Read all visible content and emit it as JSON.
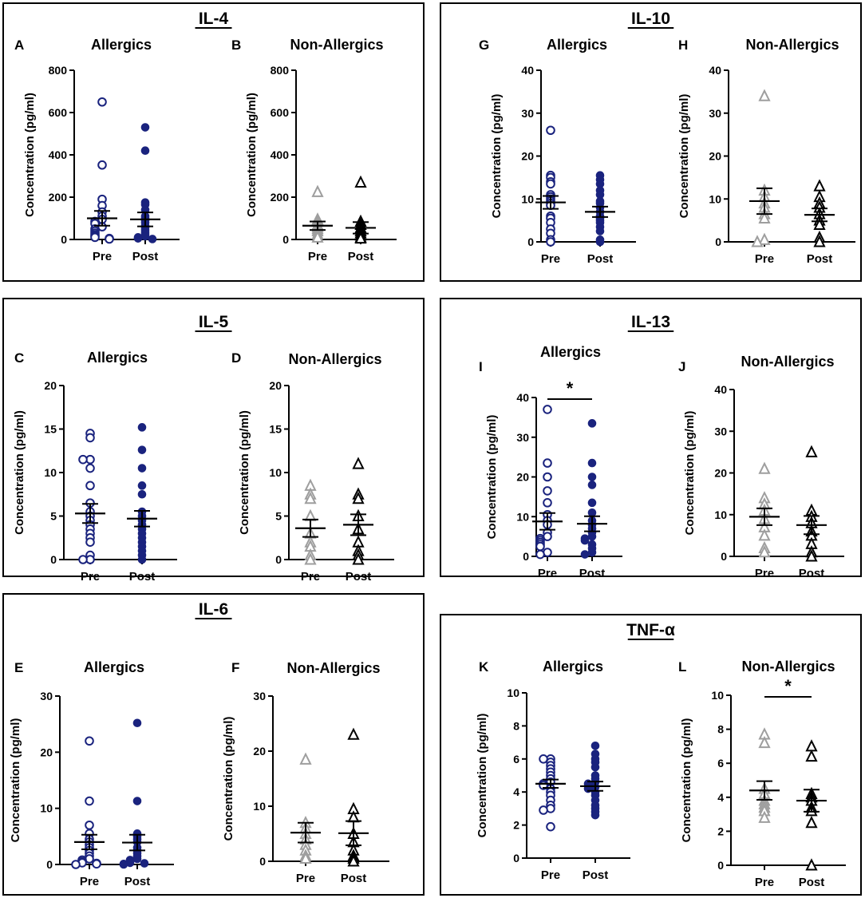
{
  "colors": {
    "allergic_pre": "#1a237e",
    "allergic_post": "#1a237e",
    "nonallergic_pre": "#9e9e9e",
    "nonallergic_post": "#000000",
    "axis": "#000000"
  },
  "panels": [
    {
      "title": "IL-4",
      "plots": [
        "A",
        "B"
      ]
    },
    {
      "title": "IL-10",
      "plots": [
        "G",
        "H"
      ]
    },
    {
      "title": "IL-5",
      "plots": [
        "C",
        "D"
      ]
    },
    {
      "title": "IL-13",
      "plots": [
        "I",
        "J"
      ]
    },
    {
      "title": "IL-6",
      "plots": [
        "E",
        "F"
      ]
    },
    {
      "title": "TNF-α",
      "plots": [
        "K",
        "L"
      ]
    }
  ],
  "chart_data": [
    {
      "id": "A",
      "letter": "A",
      "type": "scatter",
      "title": "Allergics",
      "ylabel": "Concentration (pg/ml)",
      "ylim": [
        0,
        800
      ],
      "yticks": [
        0,
        200,
        400,
        600,
        800
      ],
      "categories": [
        "Pre",
        "Post"
      ],
      "marker": "circle",
      "group": "allergic",
      "series": [
        {
          "name": "Pre",
          "values": [
            650,
            352,
            190,
            160,
            130,
            110,
            95,
            85,
            75,
            60,
            50,
            40,
            30,
            22,
            15,
            10,
            5,
            2
          ],
          "mean": 100,
          "sem": 35
        },
        {
          "name": "Post",
          "values": [
            530,
            420,
            175,
            165,
            140,
            110,
            100,
            90,
            80,
            65,
            55,
            45,
            35,
            25,
            15,
            10,
            5,
            2
          ],
          "mean": 95,
          "sem": 33
        }
      ],
      "significance": null
    },
    {
      "id": "B",
      "letter": "B",
      "type": "scatter",
      "title": "Non-Allergics",
      "ylabel": "Concentration (pg/ml)",
      "ylim": [
        0,
        800
      ],
      "yticks": [
        0,
        200,
        400,
        600,
        800
      ],
      "categories": [
        "Pre",
        "Post"
      ],
      "marker": "triangle",
      "group": "nonallergic",
      "series": [
        {
          "name": "Pre",
          "values": [
            225,
            95,
            85,
            70,
            60,
            50,
            40,
            25,
            10
          ],
          "mean": 65,
          "sem": 20
        },
        {
          "name": "Post",
          "values": [
            270,
            85,
            70,
            55,
            40,
            30,
            20,
            10,
            5
          ],
          "mean": 55,
          "sem": 27
        }
      ],
      "significance": null
    },
    {
      "id": "G",
      "letter": "G",
      "type": "scatter",
      "title": "Allergics",
      "ylabel": "Concentration (pg/ml)",
      "ylim": [
        0,
        40
      ],
      "yticks": [
        0,
        10,
        20,
        30,
        40
      ],
      "categories": [
        "Pre",
        "Post"
      ],
      "marker": "circle",
      "group": "allergic",
      "series": [
        {
          "name": "Pre",
          "values": [
            26,
            15.5,
            15,
            14,
            13.5,
            11,
            10.5,
            10,
            9.5,
            9,
            8.5,
            6,
            5.5,
            4.5,
            3,
            2,
            0.5,
            0
          ],
          "mean": 9.2,
          "sem": 1.5
        },
        {
          "name": "Post",
          "values": [
            15.5,
            14.5,
            13.5,
            12,
            11,
            9.5,
            9,
            8,
            7,
            6,
            5.5,
            5,
            4.5,
            3.5,
            2.5,
            0.5,
            0
          ],
          "mean": 7,
          "sem": 1.2
        }
      ],
      "significance": null
    },
    {
      "id": "H",
      "letter": "H",
      "type": "scatter",
      "title": "Non-Allergics",
      "ylabel": "Concentration (pg/ml)",
      "ylim": [
        0,
        40
      ],
      "yticks": [
        0,
        10,
        20,
        30,
        40
      ],
      "categories": [
        "Pre",
        "Post"
      ],
      "marker": "triangle",
      "group": "nonallergic",
      "series": [
        {
          "name": "Pre",
          "values": [
            34,
            12,
            10.5,
            9,
            8,
            6.5,
            5.5,
            0.5,
            0
          ],
          "mean": 9.5,
          "sem": 3
        },
        {
          "name": "Post",
          "values": [
            13,
            10.5,
            9,
            8,
            6.5,
            5,
            4,
            1,
            0
          ],
          "mean": 6.3,
          "sem": 1.5
        }
      ],
      "significance": null
    },
    {
      "id": "C",
      "letter": "C",
      "type": "scatter",
      "title": "Allergics",
      "ylabel": "Concentration (pg/ml)",
      "ylim": [
        0,
        20
      ],
      "yticks": [
        0,
        5,
        10,
        15,
        20
      ],
      "categories": [
        "Pre",
        "Post"
      ],
      "marker": "circle",
      "group": "allergic",
      "series": [
        {
          "name": "Pre",
          "values": [
            14.5,
            14,
            11.5,
            11.5,
            10.5,
            8.5,
            6.5,
            5.5,
            5,
            4.5,
            4,
            3.5,
            3,
            2.5,
            2,
            0.5,
            0,
            0
          ],
          "mean": 5.3,
          "sem": 1.1
        },
        {
          "name": "Post",
          "values": [
            15.2,
            12.6,
            10.5,
            8.5,
            7.5,
            5.5,
            5,
            4.5,
            4,
            3.5,
            3,
            2.5,
            2,
            1.5,
            1,
            0.5,
            0
          ],
          "mean": 4.7,
          "sem": 0.9
        }
      ],
      "significance": null
    },
    {
      "id": "D",
      "letter": "D",
      "type": "scatter",
      "title": "Non-Allergics",
      "ylabel": "Concentration (pg/ml)",
      "ylim": [
        0,
        20
      ],
      "yticks": [
        0,
        5,
        10,
        15,
        20
      ],
      "categories": [
        "Pre",
        "Post"
      ],
      "marker": "triangle",
      "group": "nonallergic",
      "series": [
        {
          "name": "Pre",
          "values": [
            8.5,
            7.5,
            7,
            5,
            3,
            2,
            1.5,
            0.5,
            0
          ],
          "mean": 3.6,
          "sem": 1
        },
        {
          "name": "Post",
          "values": [
            11,
            7.5,
            7,
            5,
            3.5,
            2,
            1,
            0.5,
            0
          ],
          "mean": 4,
          "sem": 1.2
        }
      ],
      "significance": null
    },
    {
      "id": "I",
      "letter": "I",
      "type": "scatter",
      "title": "Allergics",
      "ylabel": "Concentration (pg/ml)",
      "ylim": [
        0,
        40
      ],
      "yticks": [
        0,
        10,
        20,
        30,
        40
      ],
      "categories": [
        "Pre",
        "Post"
      ],
      "marker": "circle",
      "group": "allergic",
      "series": [
        {
          "name": "Pre",
          "values": [
            37,
            23.5,
            20,
            16.5,
            13.5,
            10.5,
            9,
            8,
            6,
            5,
            4.5,
            4,
            3.5,
            3,
            2.5,
            1,
            0.5
          ],
          "mean": 8.8,
          "sem": 2.1
        },
        {
          "name": "Post",
          "values": [
            33.5,
            23.5,
            20,
            18,
            13.5,
            11,
            9,
            8,
            7,
            6,
            5,
            4.5,
            4,
            3,
            2,
            1,
            0.5
          ],
          "mean": 8.2,
          "sem": 1.9
        }
      ],
      "significance": "*"
    },
    {
      "id": "J",
      "letter": "J",
      "type": "scatter",
      "title": "Non-Allergics",
      "ylabel": "Concentration (pg/ml)",
      "ylim": [
        0,
        40
      ],
      "yticks": [
        0,
        10,
        20,
        30,
        40
      ],
      "categories": [
        "Pre",
        "Post"
      ],
      "marker": "triangle",
      "group": "nonallergic",
      "series": [
        {
          "name": "Pre",
          "values": [
            21,
            14,
            12.5,
            11,
            9,
            7,
            5,
            2,
            1
          ],
          "mean": 9.5,
          "sem": 2
        },
        {
          "name": "Post",
          "values": [
            25,
            11,
            9.5,
            8,
            6,
            5,
            3,
            1,
            0
          ],
          "mean": 7.5,
          "sem": 2.2
        }
      ],
      "significance": null
    },
    {
      "id": "E",
      "letter": "E",
      "type": "scatter",
      "title": "Allergics",
      "ylabel": "Concentration (pg/ml)",
      "ylim": [
        0,
        30
      ],
      "yticks": [
        0,
        10,
        20,
        30
      ],
      "categories": [
        "Pre",
        "Post"
      ],
      "marker": "circle",
      "group": "allergic",
      "series": [
        {
          "name": "Pre",
          "values": [
            22,
            11.3,
            7,
            5.5,
            4.5,
            4,
            3.5,
            3,
            2.5,
            2,
            1.5,
            1,
            0.8,
            0.5,
            0.3,
            0.2,
            0.1,
            0
          ],
          "mean": 4,
          "sem": 1.3
        },
        {
          "name": "Post",
          "values": [
            25.2,
            11.3,
            5.5,
            5,
            4.5,
            4,
            3,
            2.5,
            2,
            1.5,
            1,
            0.8,
            0.5,
            0.3,
            0.2,
            0.1,
            0
          ],
          "mean": 3.9,
          "sem": 1.4
        }
      ],
      "significance": null
    },
    {
      "id": "F",
      "letter": "F",
      "type": "scatter",
      "title": "Non-Allergics",
      "ylabel": "Concentration (pg/ml)",
      "ylim": [
        0,
        30
      ],
      "yticks": [
        0,
        10,
        20,
        30
      ],
      "categories": [
        "Pre",
        "Post"
      ],
      "marker": "triangle",
      "group": "nonallergic",
      "series": [
        {
          "name": "Pre",
          "values": [
            18.5,
            7,
            6,
            5,
            4,
            3,
            2,
            1,
            0.5
          ],
          "mean": 5.2,
          "sem": 1.8
        },
        {
          "name": "Post",
          "values": [
            23,
            9.5,
            8,
            5,
            3.5,
            2,
            1,
            0.5,
            0
          ],
          "mean": 5.1,
          "sem": 2.2
        }
      ],
      "significance": null
    },
    {
      "id": "K",
      "letter": "K",
      "type": "scatter",
      "title": "Allergics",
      "ylabel": "Concentration (pg/ml)",
      "ylim": [
        0,
        10
      ],
      "yticks": [
        0,
        2,
        4,
        6,
        8,
        10
      ],
      "categories": [
        "Pre",
        "Post"
      ],
      "marker": "circle",
      "group": "allergic",
      "series": [
        {
          "name": "Pre",
          "values": [
            6,
            6,
            5.8,
            5.6,
            5.4,
            5.2,
            5,
            4.8,
            4.6,
            4.5,
            4.4,
            4.2,
            4,
            3.8,
            3.5,
            3.2,
            3,
            2.9,
            1.9
          ],
          "mean": 4.5,
          "sem": 0.25
        },
        {
          "name": "Post",
          "values": [
            6.8,
            6.3,
            6,
            5.8,
            5.5,
            5,
            4.8,
            4.6,
            4.5,
            4.3,
            4.2,
            4,
            3.8,
            3.5,
            3.2,
            3,
            2.8,
            2.6
          ],
          "mean": 4.35,
          "sem": 0.28
        }
      ],
      "significance": null
    },
    {
      "id": "L",
      "letter": "L",
      "type": "scatter",
      "title": "Non-Allergics",
      "ylabel": "Concentration (pg/ml)",
      "ylim": [
        0,
        10
      ],
      "yticks": [
        0,
        2,
        4,
        6,
        8,
        10
      ],
      "categories": [
        "Pre",
        "Post"
      ],
      "marker": "triangle",
      "group": "nonallergic",
      "series": [
        {
          "name": "Pre",
          "values": [
            7.7,
            7.2,
            4.5,
            4.2,
            3.8,
            3.6,
            3.4,
            3.2,
            2.8
          ],
          "mean": 4.4,
          "sem": 0.55
        },
        {
          "name": "Post",
          "values": [
            7,
            6.4,
            4.2,
            4,
            3.8,
            3.4,
            3.2,
            2.5,
            0
          ],
          "mean": 3.8,
          "sem": 0.65
        }
      ],
      "significance": "*"
    }
  ]
}
